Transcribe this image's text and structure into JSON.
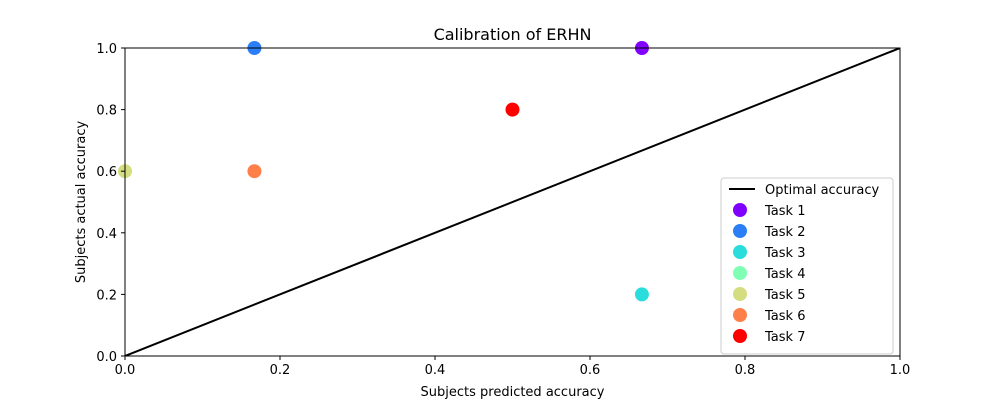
{
  "chart_data": {
    "type": "scatter",
    "title": "Calibration of ERHN",
    "xlabel": "Subjects predicted accuracy",
    "ylabel": "Subjects actual accuracy",
    "xlim": [
      0.0,
      1.0
    ],
    "ylim": [
      0.0,
      1.0
    ],
    "xticks": [
      "0.0",
      "0.2",
      "0.4",
      "0.6",
      "0.8",
      "1.0"
    ],
    "yticks": [
      "0.0",
      "0.2",
      "0.4",
      "0.6",
      "0.8",
      "1.0"
    ],
    "grid": false,
    "legend_position": "lower-right",
    "reference_line": {
      "name": "Optimal accuracy",
      "x": [
        0.0,
        1.0
      ],
      "y": [
        0.0,
        1.0
      ],
      "color": "#000000"
    },
    "series": [
      {
        "name": "Task 1",
        "color": "#8000ff",
        "x": [
          0.667
        ],
        "y": [
          1.0
        ]
      },
      {
        "name": "Task 2",
        "color": "#2c7ef7",
        "x": [
          0.167
        ],
        "y": [
          1.0
        ]
      },
      {
        "name": "Task 3",
        "color": "#2adddd",
        "x": [
          0.667
        ],
        "y": [
          0.2
        ]
      },
      {
        "name": "Task 4",
        "color": "#80ffb4",
        "x": [],
        "y": []
      },
      {
        "name": "Task 5",
        "color": "#d4dd80",
        "x": [
          0.0
        ],
        "y": [
          0.6
        ]
      },
      {
        "name": "Task 6",
        "color": "#ff7f4a",
        "x": [
          0.167
        ],
        "y": [
          0.6
        ]
      },
      {
        "name": "Task 7",
        "color": "#ff0000",
        "x": [
          0.5
        ],
        "y": [
          0.8
        ]
      }
    ]
  }
}
